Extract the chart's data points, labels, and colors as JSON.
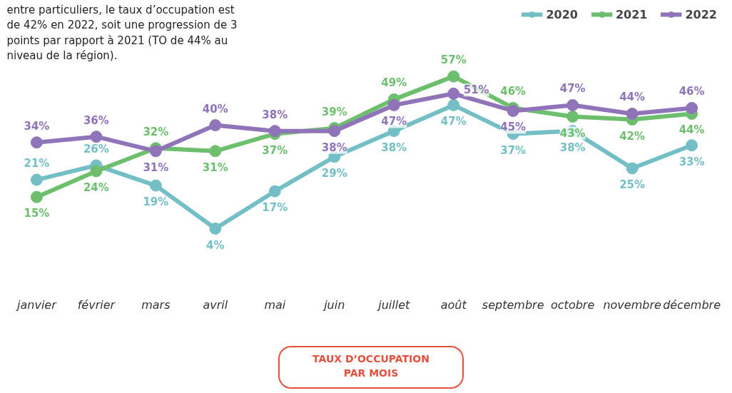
{
  "chart_data": {
    "type": "line",
    "categories": [
      "janvier",
      "février",
      "mars",
      "avril",
      "mai",
      "juin",
      "juillet",
      "août",
      "septembre",
      "octobre",
      "novembre",
      "décembre"
    ],
    "series": [
      {
        "name": "2020",
        "color": "#74bfc6",
        "values": [
          21,
          26,
          19,
          4,
          17,
          29,
          38,
          47,
          37,
          38,
          25,
          33
        ],
        "value_labels": [
          "21%",
          "26%",
          "19%",
          "4%",
          "17%",
          "29%",
          "38%",
          "47%",
          "37%",
          "38%",
          "25%",
          "33%"
        ]
      },
      {
        "name": "2021",
        "color": "#6dbf6e",
        "values": [
          15,
          24,
          32,
          31,
          37,
          39,
          49,
          57,
          46,
          43,
          42,
          44
        ],
        "value_labels": [
          "15%",
          "24%",
          "32%",
          "31%",
          "37%",
          "39%",
          "49%",
          "57%",
          "46%",
          "43%",
          "42%",
          "44%"
        ]
      },
      {
        "name": "2022",
        "color": "#8f74ba",
        "values": [
          34,
          36,
          31,
          40,
          38,
          38,
          47,
          51,
          45,
          47,
          44,
          46
        ],
        "value_labels": [
          "34%",
          "36%",
          "31%",
          "40%",
          "38%",
          "38%",
          "47%",
          "51%",
          "45%",
          "47%",
          "44%",
          "46%"
        ]
      }
    ],
    "legend": "top right",
    "marker": "circle",
    "line_style": "solid",
    "annotations": [
      "entre particuliers, le taux d’occupation est de 42% en 2022, soit une progression de 3 points par rapport à 2021 (TO de 44% au niveau de la région).",
      "TAUX D’OCCUPATION\nPAR MOIS"
    ]
  }
}
